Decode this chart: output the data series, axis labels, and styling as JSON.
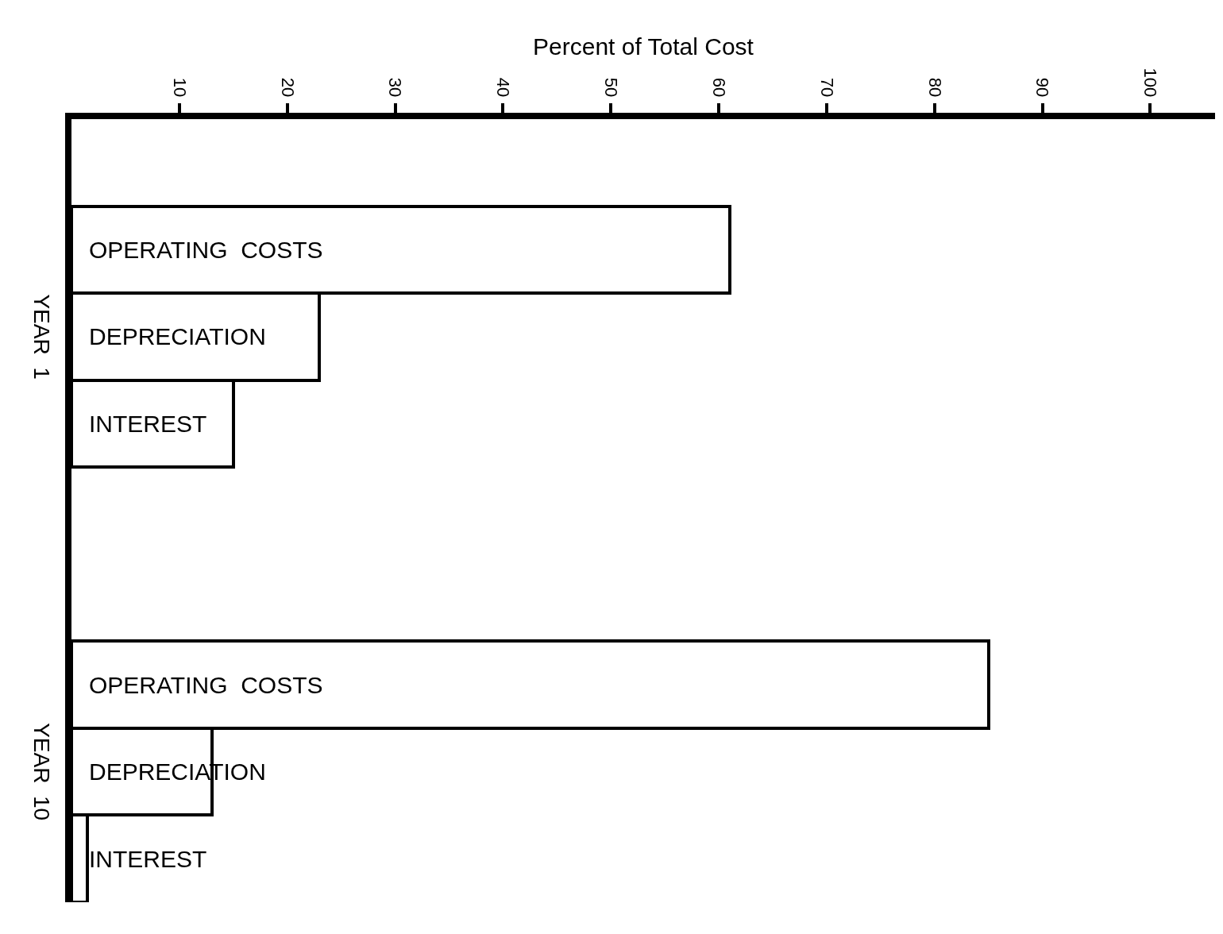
{
  "chart_data": {
    "type": "bar",
    "orientation": "horizontal",
    "xlabel": "Percent of Total Cost",
    "categories": [
      null,
      "OPERATING  COSTS",
      "DEPRECIATION",
      "INTEREST",
      null,
      null,
      "OPERATING  COSTS",
      "DEPRECIATION",
      "INTEREST"
    ],
    "values": [
      null,
      61,
      23,
      15,
      null,
      null,
      85,
      13,
      1.5
    ],
    "color": "#ffffff",
    "xlim": [
      0,
      106
    ],
    "xticks": [
      10,
      20,
      30,
      40,
      50,
      60,
      70,
      80,
      90,
      100
    ],
    "annotations": [
      "YEAR  1",
      "YEAR  10"
    ],
    "tick_labels": "x"
  }
}
